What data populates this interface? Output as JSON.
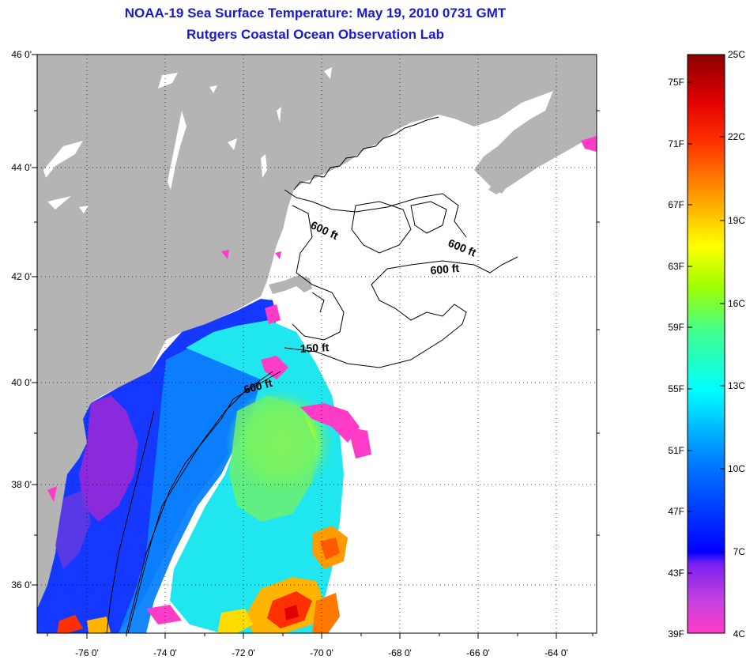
{
  "header": {
    "title": "NOAA-19 Sea Surface Temperature:  May 19, 2010 0731 GMT",
    "subtitle": "Rutgers Coastal Ocean Observation Lab"
  },
  "map": {
    "lat_labels": [
      "46 0'",
      "44 0'",
      "42 0'",
      "40 0'",
      "38 0'",
      "36 0'"
    ],
    "lon_labels": [
      "-76 0'",
      "-74 0'",
      "-72 0'",
      "-70 0'",
      "-68 0'",
      "-66 0'",
      "-64 0'"
    ],
    "contour_labels": [
      "600 ft",
      "600 ft",
      "600 ft",
      "150 ft",
      "600 ft"
    ],
    "land_color": "#b4b4b4",
    "ocean_no_data_color": "#ffffff"
  },
  "colorbar": {
    "fahrenheit_labels": [
      "75F",
      "71F",
      "67F",
      "63F",
      "59F",
      "55F",
      "51F",
      "47F",
      "43F",
      "39F"
    ],
    "celsius_labels": [
      "25C",
      "22C",
      "19C",
      "16C",
      "13C",
      "10C",
      "7C",
      "4C"
    ],
    "colors": [
      "#ff3cc8",
      "#a020f0",
      "#0000ff",
      "#0096ff",
      "#00ffff",
      "#7fff00",
      "#ffff00",
      "#ff9600",
      "#ff0000",
      "#8b0000"
    ]
  }
}
